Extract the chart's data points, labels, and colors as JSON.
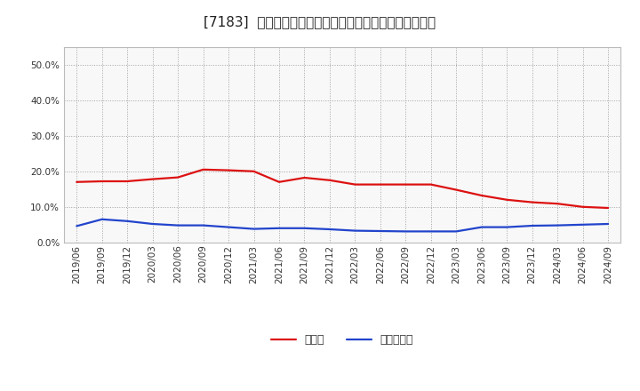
{
  "title": "[7183]  現顔金、有利子負債の総資産に対する比率の推移",
  "x_labels": [
    "2019/06",
    "2019/09",
    "2019/12",
    "2020/03",
    "2020/06",
    "2020/09",
    "2020/12",
    "2021/03",
    "2021/06",
    "2021/09",
    "2021/12",
    "2022/03",
    "2022/06",
    "2022/09",
    "2022/12",
    "2023/03",
    "2023/06",
    "2023/09",
    "2023/12",
    "2024/03",
    "2024/06",
    "2024/09"
  ],
  "cash_values": [
    0.17,
    0.172,
    0.172,
    0.178,
    0.183,
    0.205,
    0.203,
    0.2,
    0.17,
    0.182,
    0.175,
    0.163,
    0.163,
    0.163,
    0.163,
    0.148,
    0.132,
    0.12,
    0.113,
    0.109,
    0.1,
    0.097
  ],
  "debt_values": [
    0.046,
    0.065,
    0.06,
    0.052,
    0.048,
    0.048,
    0.043,
    0.038,
    0.04,
    0.04,
    0.037,
    0.033,
    0.032,
    0.031,
    0.031,
    0.031,
    0.043,
    0.043,
    0.047,
    0.048,
    0.05,
    0.052
  ],
  "cash_color": "#dd1111",
  "debt_color": "#2244cc",
  "cash_label": "現顔金",
  "debt_label": "有利子負債",
  "ylim": [
    0.0,
    0.55
  ],
  "yticks": [
    0.0,
    0.1,
    0.2,
    0.3,
    0.4,
    0.5
  ],
  "plot_bg_color": "#f8f8f8",
  "fig_bg_color": "#ffffff",
  "grid_color": "#999999",
  "title_fontsize": 11,
  "tick_fontsize": 7.5,
  "legend_fontsize": 9,
  "line_width": 1.6
}
